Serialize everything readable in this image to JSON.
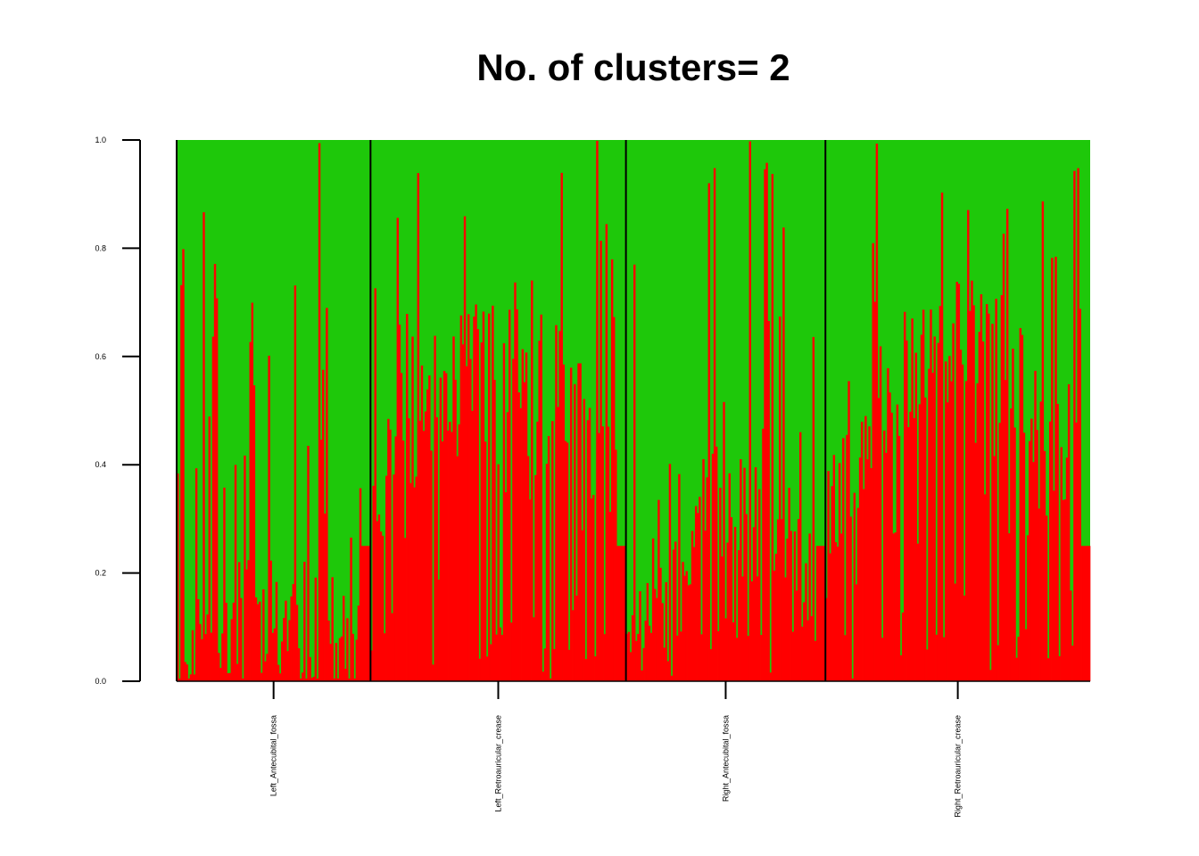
{
  "chart_data": {
    "type": "bar",
    "stacked": true,
    "title": "No. of clusters= 2",
    "xlabel": "",
    "ylabel": "",
    "ylim": [
      0,
      1
    ],
    "yticks": [
      "0.0",
      "0.2",
      "0.4",
      "0.6",
      "0.8",
      "1.0"
    ],
    "colors": {
      "cluster1": "#ff0000",
      "cluster2": "#1ec80a",
      "divider": "#000000",
      "axis": "#000000"
    },
    "groups": [
      {
        "name": "Left_Antecubital_fossa",
        "count": 104,
        "base": 0.16,
        "amp": 0.12,
        "tail": 0.25,
        "seed": 11
      },
      {
        "name": "Left_Retroauricular_crease",
        "count": 137,
        "base": 0.5,
        "amp": 0.3,
        "tail": 0.25,
        "seed": 23
      },
      {
        "name": "Right_Antecubital_fossa",
        "count": 107,
        "base": 0.3,
        "amp": 0.18,
        "tail": 0.25,
        "seed": 37
      },
      {
        "name": "Right_Retroauricular_crease",
        "count": 142,
        "base": 0.5,
        "amp": 0.3,
        "tail": 0.25,
        "seed": 53
      }
    ]
  }
}
